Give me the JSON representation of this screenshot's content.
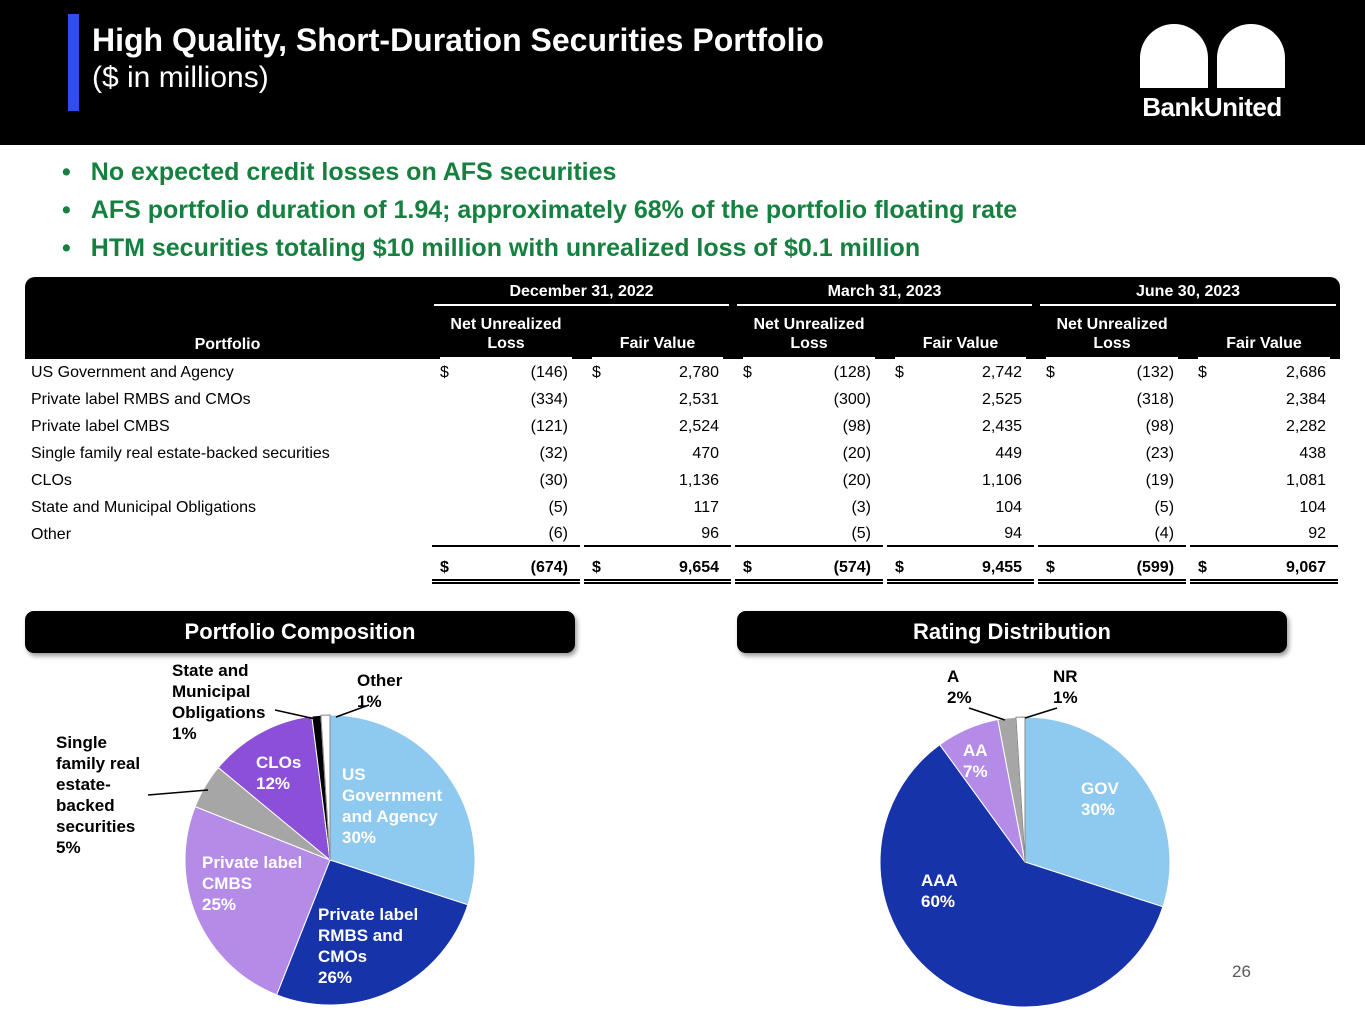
{
  "colors": {
    "header_bg": "#000000",
    "accent_bar_blue": "#2d4ef5",
    "bullet_green": "#15803f",
    "pie_light_blue": "#8ec9f0",
    "pie_dark_blue": "#1733aa",
    "pie_light_purple": "#b48ce8",
    "pie_medium_purple": "#8c4fd8",
    "pie_gray": "#a6a6a6"
  },
  "header": {
    "title": "High Quality, Short-Duration Securities Portfolio",
    "subtitle": "($ in millions)",
    "logo_text": "BankUnited"
  },
  "bullets": [
    "No expected credit losses on AFS securities",
    "AFS portfolio duration of 1.94; approximately 68% of the portfolio floating rate",
    "HTM securities totaling $10 million with unrealized loss of $0.1 million"
  ],
  "table": {
    "row_header": "Portfolio",
    "groups": [
      "December 31, 2022",
      "March 31, 2023",
      "June 30, 2023"
    ],
    "sub_headers": [
      "Net Unrealized Loss",
      "Fair Value"
    ],
    "rows": [
      {
        "label": "US Government and Agency",
        "dollar": true,
        "values": [
          "(146)",
          "2,780",
          "(128)",
          "2,742",
          "(132)",
          "2,686"
        ]
      },
      {
        "label": "Private label RMBS and CMOs",
        "dollar": false,
        "values": [
          "(334)",
          "2,531",
          "(300)",
          "2,525",
          "(318)",
          "2,384"
        ]
      },
      {
        "label": "Private label CMBS",
        "dollar": false,
        "values": [
          "(121)",
          "2,524",
          "(98)",
          "2,435",
          "(98)",
          "2,282"
        ]
      },
      {
        "label": "Single family real estate-backed securities",
        "dollar": false,
        "values": [
          "(32)",
          "470",
          "(20)",
          "449",
          "(23)",
          "438"
        ]
      },
      {
        "label": "CLOs",
        "dollar": false,
        "values": [
          "(30)",
          "1,136",
          "(20)",
          "1,106",
          "(19)",
          "1,081"
        ]
      },
      {
        "label": "State and Municipal Obligations",
        "dollar": false,
        "values": [
          "(5)",
          "117",
          "(3)",
          "104",
          "(5)",
          "104"
        ]
      },
      {
        "label": "Other",
        "dollar": false,
        "values": [
          "(6)",
          "96",
          "(5)",
          "94",
          "(4)",
          "92"
        ]
      }
    ],
    "total": {
      "dollar": true,
      "values": [
        "(674)",
        "9,654",
        "(574)",
        "9,455",
        "(599)",
        "9,067"
      ]
    }
  },
  "chart_data": [
    {
      "type": "pie",
      "title": "Portfolio Composition",
      "labels": [
        "US Government and Agency",
        "Private label RMBS and CMOs",
        "Private label CMBS",
        "Single family real estate-backed securities",
        "CLOs",
        "State and Municipal Obligations",
        "Other"
      ],
      "values": [
        30,
        26,
        25,
        5,
        12,
        1,
        1
      ],
      "colors": [
        "#8ec9f0",
        "#1733aa",
        "#b48ce8",
        "#a6a6a6",
        "#8c4fd8",
        "#000000",
        "#ffffff"
      ],
      "legend_position": "none",
      "slice_labels": {
        "us_gov": "US\nGovernment\nand Agency\n30%",
        "rmbs": "Private label\nRMBS and\nCMOs\n26%",
        "cmbs": "Private label\nCMBS\n25%",
        "clos": "CLOs\n12%"
      },
      "callout_labels": {
        "state_municipal": "State and\nMunicipal\nObligations\n1%",
        "other": "Other\n1%",
        "single_family": "Single\nfamily real\nestate-\nbacked\nsecurities\n5%"
      }
    },
    {
      "type": "pie",
      "title": "Rating Distribution",
      "labels": [
        "GOV",
        "AAA",
        "AA",
        "A",
        "NR"
      ],
      "values": [
        30,
        60,
        7,
        2,
        1
      ],
      "colors": [
        "#8ec9f0",
        "#1733aa",
        "#b48ce8",
        "#a6a6a6",
        "#ffffff"
      ],
      "legend_position": "none",
      "slice_labels": {
        "gov": "GOV\n30%",
        "aaa": "AAA\n60%",
        "aa": "AA\n7%"
      },
      "callout_labels": {
        "a": "A\n2%",
        "nr": "NR\n1%"
      }
    }
  ],
  "footer": {
    "page_number": "26"
  }
}
